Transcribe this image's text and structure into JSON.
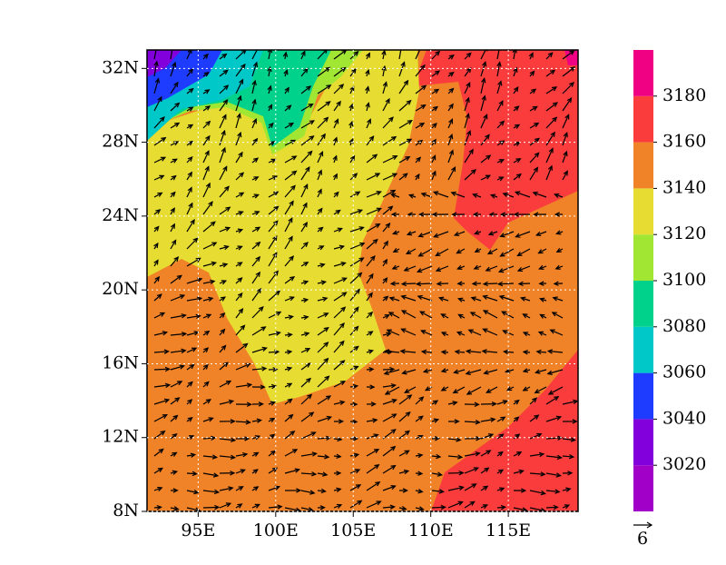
{
  "chart_data": {
    "type": "contour-map",
    "xlim": [
      91.7,
      119.5
    ],
    "ylim": [
      8,
      33
    ],
    "xticks": [
      {
        "value": 95,
        "label": "95E"
      },
      {
        "value": 100,
        "label": "100E"
      },
      {
        "value": 105,
        "label": "105E"
      },
      {
        "value": 110,
        "label": "110E"
      },
      {
        "value": 115,
        "label": "115E"
      }
    ],
    "yticks": [
      {
        "value": 8,
        "label": "8N"
      },
      {
        "value": 12,
        "label": "12N"
      },
      {
        "value": 16,
        "label": "16N"
      },
      {
        "value": 20,
        "label": "20N"
      },
      {
        "value": 24,
        "label": "24N"
      },
      {
        "value": 28,
        "label": "28N"
      },
      {
        "value": 32,
        "label": "32N"
      }
    ],
    "grid": true,
    "colorbar": {
      "levels": [
        3020,
        3040,
        3060,
        3080,
        3100,
        3120,
        3140,
        3160,
        3180
      ],
      "colors": [
        "#a000c8",
        "#8200dc",
        "#1e3cff",
        "#00c8c8",
        "#00d28c",
        "#a0e632",
        "#e6dc32",
        "#f08228",
        "#fa3c3c",
        "#f00082"
      ]
    },
    "reference_vector": "6"
  }
}
